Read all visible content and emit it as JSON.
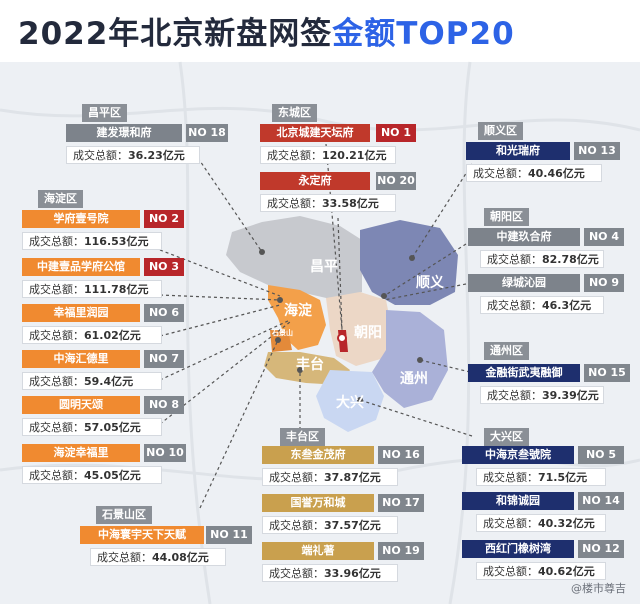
{
  "title": {
    "part1": "2022年北京新盘网签",
    "part2": "金额TOP20"
  },
  "amount_label": "成交总额：",
  "map_labels": {
    "changping": "昌平",
    "shunyi": "顺义",
    "haidian": "海淀",
    "chaoyang": "朝阳",
    "fengtai": "丰台",
    "tongzhou": "通州",
    "daxing": "大兴",
    "shijingshan": "石景山"
  },
  "regions": {
    "changping": "昌平区",
    "dongcheng": "东城区",
    "shunyi": "顺义区",
    "haidian": "海淀区",
    "chaoyang": "朝阳区",
    "tongzhou": "通州区",
    "fengtai": "丰台区",
    "daxing": "大兴区",
    "shijingshan": "石景山区"
  },
  "projects": [
    {
      "key": "p1",
      "name": "北京城建天坛府",
      "rank": "NO 1",
      "amount": "120.21亿元"
    },
    {
      "key": "p2",
      "name": "学府壹号院",
      "rank": "NO 2",
      "amount": "116.53亿元"
    },
    {
      "key": "p3",
      "name": "中建壹品学府公馆",
      "rank": "NO 3",
      "amount": "111.78亿元"
    },
    {
      "key": "p4",
      "name": "中建玖合府",
      "rank": "NO 4",
      "amount": "82.78亿元"
    },
    {
      "key": "p5",
      "name": "中海京叁號院",
      "rank": "NO 5",
      "amount": "71.5亿元"
    },
    {
      "key": "p6",
      "name": "幸福里润园",
      "rank": "NO 6",
      "amount": "61.02亿元"
    },
    {
      "key": "p7",
      "name": "中海汇德里",
      "rank": "NO 7",
      "amount": "59.4亿元"
    },
    {
      "key": "p8",
      "name": "圆明天颂",
      "rank": "NO 8",
      "amount": "57.05亿元"
    },
    {
      "key": "p9",
      "name": "绿城沁园",
      "rank": "NO 9",
      "amount": "46.3亿元"
    },
    {
      "key": "p10",
      "name": "海淀幸福里",
      "rank": "NO 10",
      "amount": "45.05亿元"
    },
    {
      "key": "p11",
      "name": "中海寰宇天下天赋",
      "rank": "NO 11",
      "amount": "44.08亿元"
    },
    {
      "key": "p12",
      "name": "西红门橡树湾",
      "rank": "NO 12",
      "amount": "40.62亿元"
    },
    {
      "key": "p13",
      "name": "和光瑞府",
      "rank": "NO 13",
      "amount": "40.46亿元"
    },
    {
      "key": "p14",
      "name": "和锦诚园",
      "rank": "NO 14",
      "amount": "40.32亿元"
    },
    {
      "key": "p15",
      "name": "金融街武夷融御",
      "rank": "NO 15",
      "amount": "39.39亿元"
    },
    {
      "key": "p16",
      "name": "东叁金茂府",
      "rank": "NO 16",
      "amount": "37.87亿元"
    },
    {
      "key": "p17",
      "name": "国誉万和城",
      "rank": "NO 17",
      "amount": "37.57亿元"
    },
    {
      "key": "p18",
      "name": "建发璟和府",
      "rank": "NO 18",
      "amount": "36.23亿元"
    },
    {
      "key": "p19",
      "name": "端礼著",
      "rank": "NO 19",
      "amount": "33.96亿元"
    },
    {
      "key": "p20",
      "name": "永定府",
      "rank": "NO 20",
      "amount": "33.58亿元"
    }
  ],
  "watermark": "@楼市尊吉",
  "colors": {
    "title_dark": "#232a3c",
    "title_blue": "#2d63e6",
    "red": "#c0392b",
    "orange": "#f08a30",
    "navy": "#1e2f6e",
    "gray": "#8a8f96",
    "olive": "#c9a04e"
  }
}
